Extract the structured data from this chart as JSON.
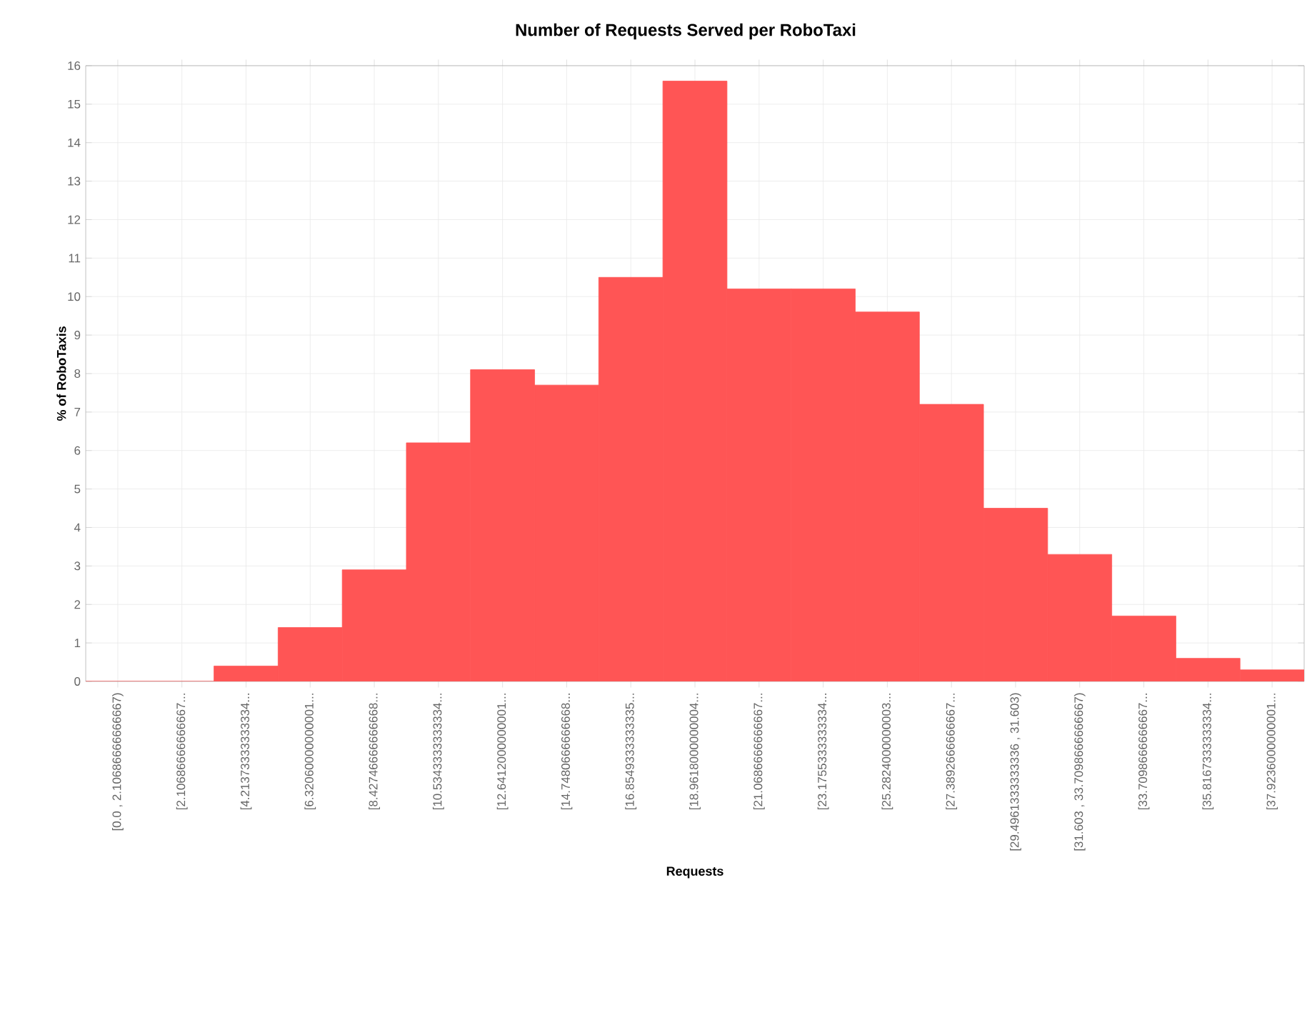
{
  "chart_data": {
    "type": "bar",
    "title": "Number of Requests Served per RoboTaxi",
    "xlabel": "Requests",
    "ylabel": "% of RoboTaxis",
    "categories": [
      "[0.0 , 2.10686666666667)",
      "[2.10686666666667...",
      "[4.21373333333334...",
      "[6.32060000000001...",
      "[8.42746666666668...",
      "[10.5343333333334...",
      "[12.6412000000001...",
      "[14.7480666666668...",
      "[16.8549333333335...",
      "[18.9618000000004...",
      "[21.0686666666667...",
      "[23.1755333333334...",
      "[25.2824000000003...",
      "[27.3892666666667...",
      "[29.4961333333336 , 31.603)",
      "[31.603 , 33.7098666666667)",
      "[33.7098666666667...",
      "[35.8167333333334...",
      "[37.9236000000001..."
    ],
    "values": [
      0,
      0,
      0.4,
      1.4,
      2.9,
      6.2,
      8.1,
      7.7,
      10.5,
      15.6,
      10.2,
      10.2,
      9.6,
      7.2,
      4.5,
      3.3,
      1.7,
      0.6,
      0.3
    ],
    "color": "#ff5555",
    "ylim": [
      0,
      16
    ],
    "yticks": [
      0,
      1,
      2,
      3,
      4,
      5,
      6,
      7,
      8,
      9,
      10,
      11,
      12,
      13,
      14,
      15,
      16
    ],
    "grid": true
  }
}
